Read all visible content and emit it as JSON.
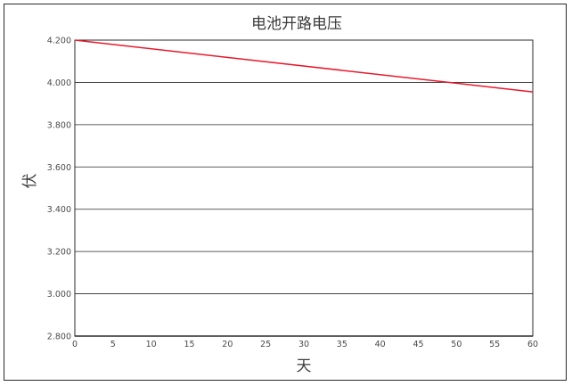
{
  "chart_data": {
    "type": "line",
    "title": "电池开路电压",
    "xlabel": "天",
    "ylabel": "伏",
    "xlim": [
      0,
      60
    ],
    "ylim": [
      2.8,
      4.2
    ],
    "x_ticks": [
      0,
      5,
      10,
      15,
      20,
      25,
      30,
      35,
      40,
      45,
      50,
      55,
      60
    ],
    "y_ticks": [
      "2.800",
      "3.000",
      "3.200",
      "3.400",
      "3.600",
      "3.800",
      "4.000",
      "4.200"
    ],
    "y_tick_values": [
      2.8,
      3.0,
      3.2,
      3.4,
      3.6,
      3.8,
      4.0,
      4.2
    ],
    "grid": "horizontal",
    "series": [
      {
        "name": "",
        "color": "#e8192c",
        "x": [
          0,
          60
        ],
        "y": [
          4.2,
          3.955
        ]
      }
    ]
  }
}
